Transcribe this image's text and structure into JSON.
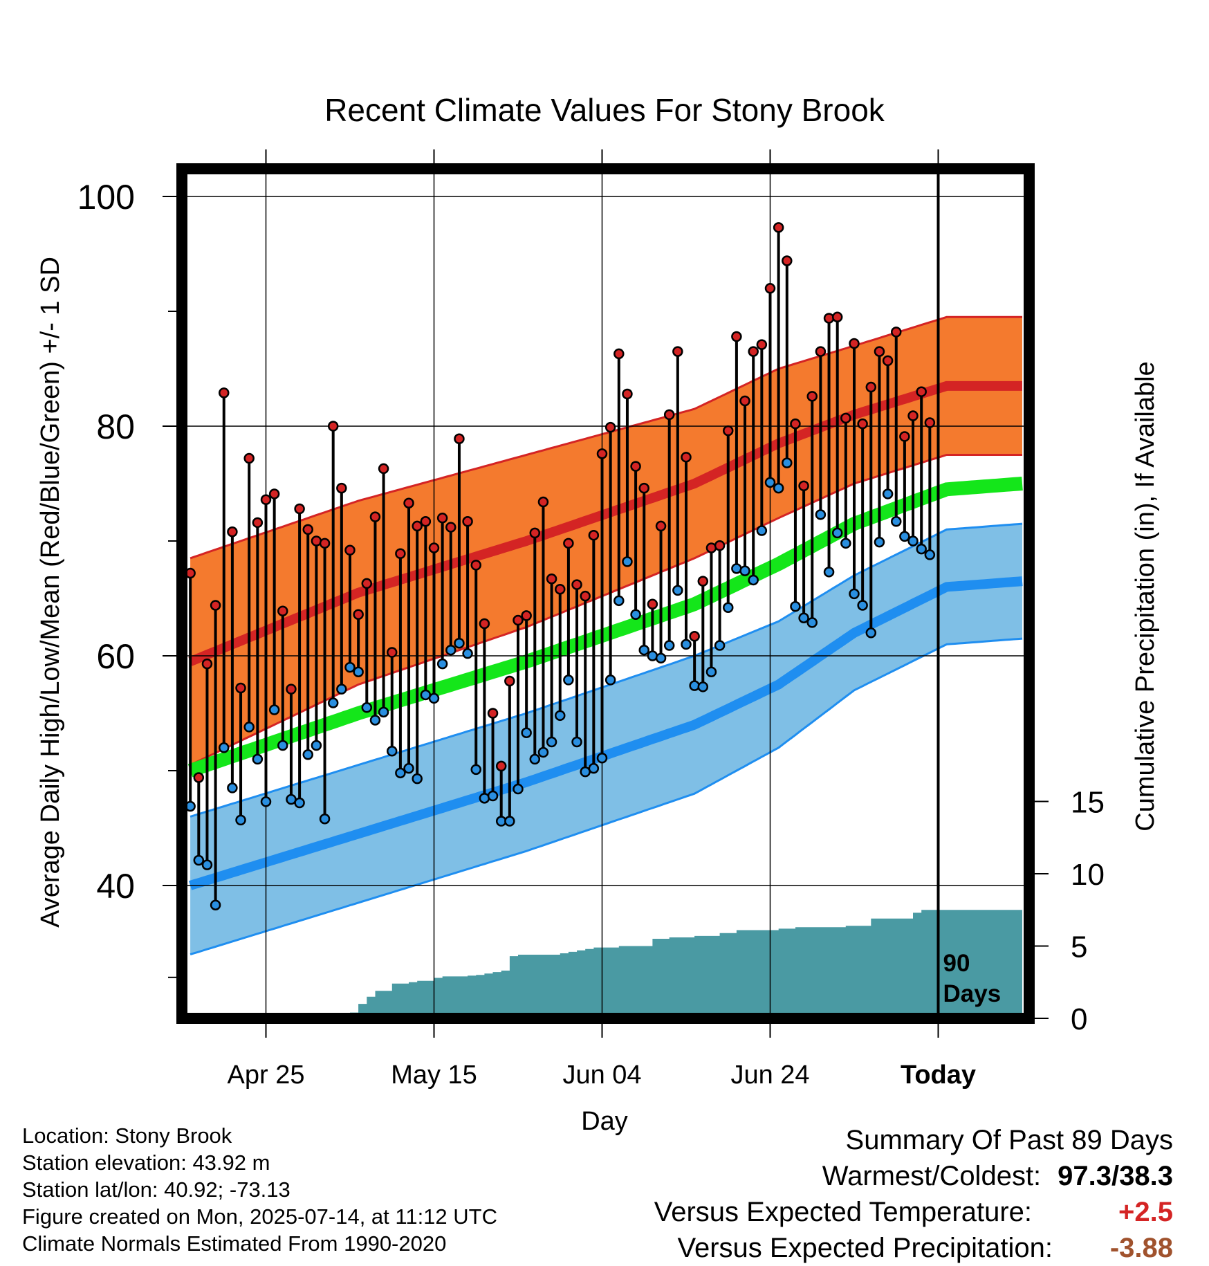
{
  "chart_data": {
    "type": "line",
    "title": "Recent Climate Values For Stony Brook",
    "xlabel": "Day",
    "ylabel_left": "Average Daily High/Low/Mean (Red/Blue/Green) +/- 1 SD",
    "ylabel_right": "Cumulative Precipitation (in), If Available",
    "x_ticks": [
      "Apr 25",
      "May 15",
      "Jun 04",
      "Jun 24",
      "Today"
    ],
    "y_ticks_left": [
      "40",
      "60",
      "80",
      "100"
    ],
    "y_ticks_right": [
      "0",
      "5",
      "10",
      "15"
    ],
    "ylim_left": [
      29,
      103
    ],
    "ylim_right": [
      0,
      15
    ],
    "today_marker": "90\nDays",
    "colors": {
      "high_band": "#f47a2e",
      "high_line": "#d42424",
      "low_band": "#7fbfe6",
      "low_line": "#1f8ef0",
      "mean_line": "#14e61a",
      "precip": "#4a9aa3",
      "high_point": "#d42424",
      "low_point": "#2a8fe0"
    },
    "normal_high": {
      "x": [
        0,
        20,
        40,
        60,
        70,
        79,
        90,
        99
      ],
      "values": [
        59.5,
        65.5,
        70.0,
        75.0,
        78.5,
        81.0,
        83.5,
        83.5
      ]
    },
    "normal_high_sd": [
      9.0,
      8.0,
      7.5,
      6.5,
      6.5,
      6.0,
      6.0,
      6.0
    ],
    "normal_low": {
      "x": [
        0,
        20,
        40,
        60,
        70,
        79,
        90,
        99
      ],
      "values": [
        40.0,
        44.5,
        49.0,
        54.0,
        57.5,
        62.0,
        66.0,
        66.5
      ]
    },
    "normal_low_sd": [
      6.0,
      6.0,
      6.0,
      6.0,
      5.5,
      5.0,
      5.0,
      5.0
    ],
    "normal_mean": {
      "x": [
        0,
        20,
        40,
        60,
        70,
        79,
        90,
        99
      ],
      "values": [
        50.0,
        55.0,
        59.5,
        64.5,
        68.0,
        71.5,
        74.5,
        75.0
      ]
    },
    "daily_high": [
      67.2,
      49.4,
      59.3,
      64.4,
      82.9,
      70.8,
      57.2,
      77.2,
      71.6,
      73.6,
      74.1,
      63.9,
      57.1,
      72.8,
      71.0,
      70.0,
      69.8,
      80.0,
      74.6,
      69.2,
      63.6,
      66.3,
      72.1,
      76.3,
      60.3,
      68.9,
      73.3,
      71.3,
      71.7,
      69.4,
      72.0,
      71.2,
      78.9,
      71.7,
      67.9,
      62.8,
      55.0,
      50.4,
      57.8,
      63.1,
      63.5,
      70.7,
      73.4,
      66.7,
      65.8,
      69.8,
      66.2,
      65.2,
      70.5,
      77.6,
      79.9,
      86.3,
      82.8,
      76.5,
      74.6,
      64.5,
      71.3,
      81.0,
      86.5,
      77.3,
      61.7,
      66.5,
      69.4,
      69.6,
      79.6,
      87.8,
      82.2,
      86.5,
      87.1,
      92.0,
      97.3,
      94.4,
      80.2,
      74.8,
      82.6,
      86.5,
      89.4,
      89.5,
      80.7,
      87.2,
      80.2,
      83.4,
      86.5,
      85.7,
      88.2,
      79.1,
      80.9,
      83.0,
      80.3
    ],
    "daily_low": [
      46.9,
      42.2,
      41.8,
      38.3,
      52.0,
      48.5,
      45.7,
      53.8,
      51.0,
      47.3,
      55.3,
      52.2,
      47.5,
      47.2,
      51.4,
      52.2,
      45.8,
      55.9,
      57.1,
      59.0,
      58.6,
      55.5,
      54.4,
      55.1,
      51.7,
      49.8,
      50.2,
      49.3,
      56.6,
      56.3,
      59.3,
      60.5,
      61.1,
      60.2,
      50.1,
      47.6,
      47.8,
      45.6,
      45.6,
      48.4,
      53.3,
      51.0,
      51.6,
      52.5,
      54.8,
      57.9,
      52.5,
      49.9,
      50.2,
      51.1,
      57.9,
      64.8,
      68.2,
      63.6,
      60.5,
      60.0,
      59.8,
      60.9,
      65.7,
      61.0,
      57.4,
      57.3,
      58.6,
      60.9,
      64.2,
      67.6,
      67.4,
      66.6,
      70.9,
      75.1,
      74.6,
      76.8,
      64.3,
      63.3,
      62.9,
      72.3,
      67.3,
      70.7,
      69.8,
      65.4,
      64.4,
      62.0,
      69.9,
      74.1,
      71.7,
      70.4,
      70.0,
      69.3,
      68.8
    ],
    "cumulative_precip": {
      "x": [
        0,
        10,
        16,
        17,
        19,
        20,
        21,
        22,
        24,
        26,
        27,
        29,
        30,
        33,
        34,
        35,
        36,
        37,
        38,
        39,
        40,
        41,
        42,
        44,
        45,
        46,
        47,
        48,
        49,
        50,
        51,
        52,
        53,
        54,
        55,
        57,
        60,
        62,
        63,
        65,
        70,
        72,
        75,
        77,
        78,
        81,
        86,
        87,
        99
      ],
      "values": [
        0,
        0.2,
        0.2,
        0.3,
        0.4,
        1.0,
        1.5,
        1.9,
        2.4,
        2.5,
        2.6,
        2.8,
        2.9,
        2.95,
        3.0,
        3.1,
        3.2,
        3.3,
        4.3,
        4.4,
        4.4,
        4.4,
        4.4,
        4.5,
        4.6,
        4.7,
        4.8,
        4.9,
        4.9,
        4.9,
        5.0,
        5.0,
        5.0,
        5.0,
        5.5,
        5.6,
        5.7,
        5.7,
        5.9,
        6.1,
        6.2,
        6.3,
        6.3,
        6.3,
        6.4,
        6.9,
        7.3,
        7.5,
        7.5
      ]
    }
  },
  "footer": {
    "location": "Location: Stony Brook",
    "elevation": "Station elevation: 43.92 m",
    "latlon": "Station lat/lon: 40.92; -73.13",
    "created": "Figure created on Mon, 2025-07-14, at 11:12 UTC",
    "normals": "Climate Normals Estimated From 1990-2020"
  },
  "summary": {
    "heading": "Summary Of Past 89 Days",
    "warm_cold_label": "Warmest/Coldest:",
    "warm_cold_value": "97.3/38.3",
    "temp_label": "Versus Expected Temperature:",
    "temp_value": "+2.5",
    "temp_color": "#d42424",
    "precip_label": "Versus Expected Precipitation:",
    "precip_value": "-3.88",
    "precip_color": "#a0522d"
  }
}
